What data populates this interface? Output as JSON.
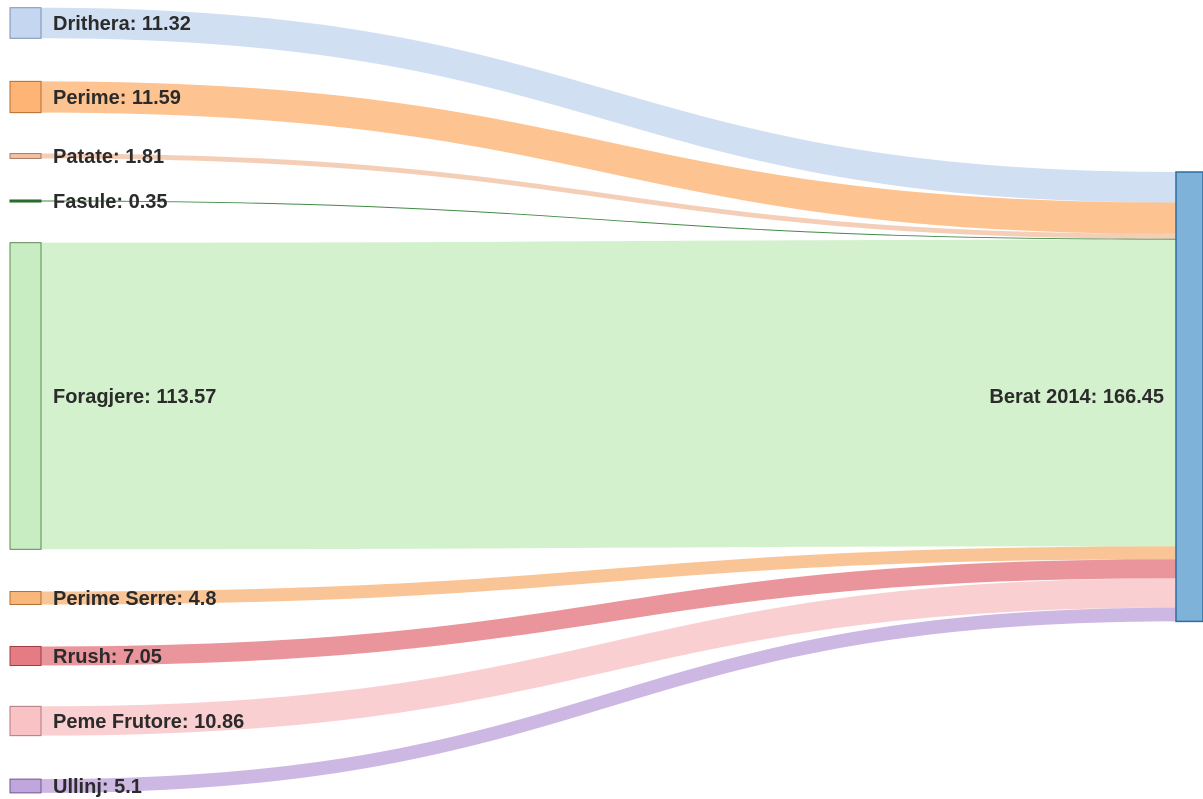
{
  "chart_data": {
    "type": "sankey",
    "target": {
      "name": "Berat 2014",
      "value": 166.45,
      "color": "#7fb2d9",
      "stroke": "#2f6d9e"
    },
    "sources": [
      {
        "name": "Drithera",
        "value": 11.32,
        "color": "#c5d7f0",
        "stroke": "#7a8fb0"
      },
      {
        "name": "Perime",
        "value": 11.59,
        "color": "#fdb475",
        "stroke": "#b36e2e"
      },
      {
        "name": "Patate",
        "value": 1.81,
        "color": "#f3c2a5",
        "stroke": "#a77a5f"
      },
      {
        "name": "Fasule",
        "value": 0.35,
        "color": "#2e7d32",
        "stroke": "#1f5f23"
      },
      {
        "name": "Foragjere",
        "value": 113.57,
        "color": "#c9edc2",
        "stroke": "#5a8a52"
      },
      {
        "name": "Perime Serre",
        "value": 4.8,
        "color": "#f9b77c",
        "stroke": "#b36e2e"
      },
      {
        "name": "Rrush",
        "value": 7.05,
        "color": "#e57b83",
        "stroke": "#9c3c45"
      },
      {
        "name": "Peme Frutore",
        "value": 10.86,
        "color": "#f9c3c6",
        "stroke": "#b07a7e"
      },
      {
        "name": "Ullinj",
        "value": 5.1,
        "color": "#c0a6dd",
        "stroke": "#6f5a8e"
      }
    ]
  }
}
